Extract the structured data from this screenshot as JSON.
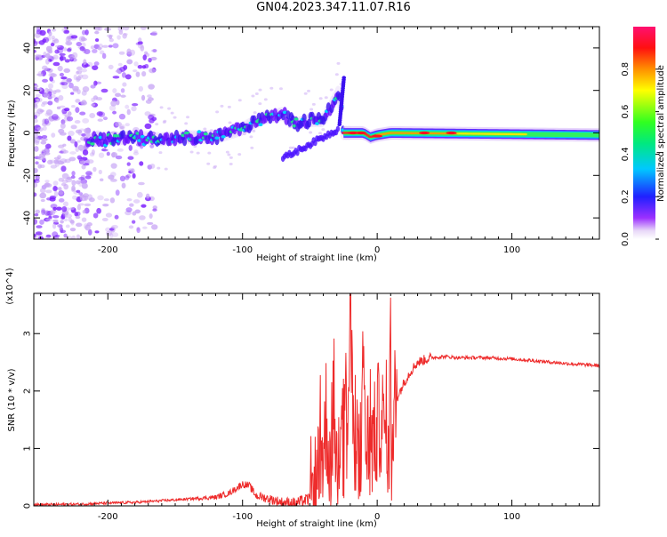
{
  "figure_title": "GN04.2023.347.11.07.R16",
  "chart_data": [
    {
      "type": "heatmap",
      "xlabel": "Height of straight line (km)",
      "ylabel": "Frequency (Hz)",
      "xlim": [
        -255,
        165
      ],
      "ylim": [
        -50,
        50
      ],
      "xticks": [
        -200,
        -100,
        0,
        100
      ],
      "yticks": [
        -40,
        -20,
        0,
        20,
        40
      ],
      "colorbar": {
        "label": "Normalized spectral amplitude",
        "range": [
          0,
          1
        ],
        "ticks": [
          "0.0",
          "0.2",
          "0.4",
          "0.6",
          "0.8"
        ],
        "colormap": "rainbow: white-violet-blue-cyan-green-yellow-red-magenta"
      },
      "ridge": [
        {
          "x": -215,
          "f": -3
        },
        {
          "x": -200,
          "f": -3
        },
        {
          "x": -180,
          "f": -2
        },
        {
          "x": -160,
          "f": -3
        },
        {
          "x": -140,
          "f": -2
        },
        {
          "x": -120,
          "f": -2
        },
        {
          "x": -100,
          "f": 2
        },
        {
          "x": -85,
          "f": 7
        },
        {
          "x": -70,
          "f": 9
        },
        {
          "x": -60,
          "f": 4
        },
        {
          "x": -50,
          "f": 6
        },
        {
          "x": -40,
          "f": 6
        },
        {
          "x": -28,
          "f": 20
        },
        {
          "x": -25,
          "f": 0
        },
        {
          "x": -10,
          "f": 0
        },
        {
          "x": -5,
          "f": -2
        },
        {
          "x": 0,
          "f": -1
        },
        {
          "x": 10,
          "f": 0
        },
        {
          "x": 165,
          "f": -1
        }
      ]
    },
    {
      "type": "line",
      "xlabel": "Height of straight line (km)",
      "ylabel": "SNR (10 * v/v)",
      "yunit_note": "(x10^4)",
      "xlim": [
        -255,
        165
      ],
      "ylim": [
        0,
        3.7
      ],
      "xticks": [
        -200,
        -100,
        0,
        100
      ],
      "yticks": [
        0,
        1,
        2,
        3
      ],
      "color": "#ee2b2b",
      "series": [
        {
          "x": [
            -255,
            -220,
            -200,
            -180,
            -160,
            -140,
            -120,
            -110,
            -100,
            -95,
            -90,
            -80,
            -70,
            -60,
            -50,
            -45,
            -42,
            -40,
            -38,
            -35,
            -32,
            -30,
            -28,
            -25,
            -22,
            -20,
            -18,
            -16,
            -14,
            -12,
            -10,
            -8,
            -5,
            -2,
            0,
            3,
            5,
            8,
            10,
            12,
            13,
            15,
            18,
            20,
            25,
            30,
            40,
            50,
            60,
            80,
            100,
            120,
            140,
            165
          ],
          "y": [
            0.02,
            0.03,
            0.05,
            0.06,
            0.09,
            0.12,
            0.15,
            0.22,
            0.38,
            0.35,
            0.18,
            0.12,
            0.06,
            0.05,
            0.12,
            0.28,
            1.3,
            0.8,
            1.6,
            0.7,
            1.9,
            0.5,
            1.3,
            2.8,
            1.0,
            3.65,
            1.2,
            2.4,
            0.4,
            1.3,
            2.6,
            0.8,
            1.6,
            1.1,
            1.4,
            1.6,
            1.2,
            1.7,
            2.75,
            0.6,
            1.8,
            1.9,
            2.05,
            2.15,
            2.35,
            2.5,
            2.58,
            2.6,
            2.58,
            2.58,
            2.56,
            2.52,
            2.48,
            2.44
          ]
        }
      ]
    }
  ]
}
